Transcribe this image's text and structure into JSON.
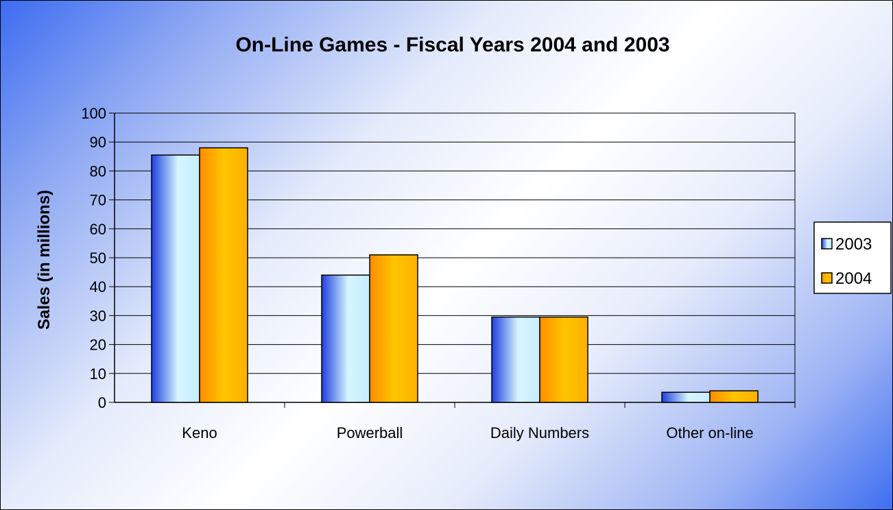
{
  "chart_data": {
    "type": "bar",
    "title": "On-Line Games - Fiscal Years 2004 and 2003",
    "ylabel": "Sales (in millions)",
    "xlabel": "",
    "categories": [
      "Keno",
      "Powerball",
      "Daily Numbers",
      "Other on-line"
    ],
    "series": [
      {
        "name": "2003",
        "values": [
          85.5,
          44,
          29.5,
          3.5
        ],
        "color": "#aaccff"
      },
      {
        "name": "2004",
        "values": [
          88,
          51,
          29.5,
          4
        ],
        "color": "#ffb800"
      }
    ],
    "ylim": [
      0,
      100
    ],
    "yticks": [
      0,
      10,
      20,
      30,
      40,
      50,
      60,
      70,
      80,
      90,
      100
    ],
    "grid": true,
    "legend": "right"
  }
}
